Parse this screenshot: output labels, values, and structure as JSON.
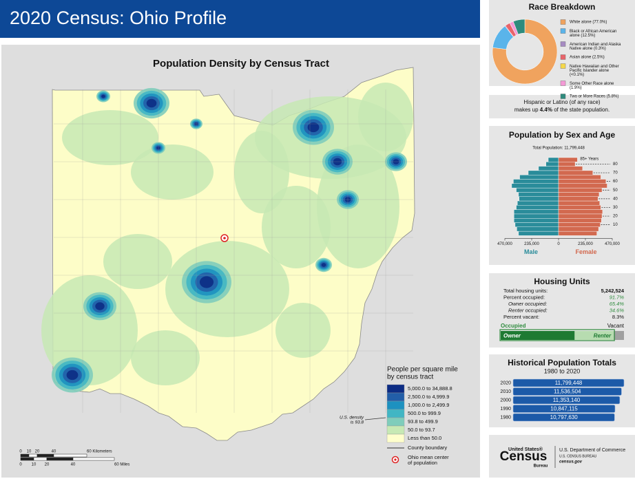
{
  "header": {
    "title": "2020 Census: Ohio Profile"
  },
  "map": {
    "title": "Population Density by Census Tract",
    "legend_title": [
      "People per square mile",
      "by census tract"
    ],
    "legend": [
      {
        "label": "5,000.0 to 34,888.8",
        "color": "#0c2c84"
      },
      {
        "label": "2,500.0 to 4,999.9",
        "color": "#225ea8"
      },
      {
        "label": "1,000.0 to 2,499.9",
        "color": "#1d91c0"
      },
      {
        "label": "500.0 to 999.9",
        "color": "#41b6c4"
      },
      {
        "label": "93.8 to 499.9",
        "color": "#7fcdbb"
      },
      {
        "label": "50.0 to 93.7",
        "color": "#c7e9b4"
      },
      {
        "label": "Less than 50.0",
        "color": "#ffffcc"
      }
    ],
    "county_boundary": "County boundary",
    "mean_center": [
      "Ohio mean center",
      "of population"
    ],
    "us_density": [
      "U.S. density",
      "is 93.8"
    ],
    "scale_km": [
      "0",
      "10",
      "20",
      "40",
      "60 Kilometers"
    ],
    "scale_mi": [
      "0",
      "10",
      "20",
      "40",
      "60 Miles"
    ]
  },
  "chart_data": [
    {
      "type": "pie",
      "title": "Race Breakdown",
      "categories": [
        "White alone (77.0%)",
        "Black or African American alone (12.5%)",
        "American Indian and Alaska Native alone (0.3%)",
        "Asian alone (2.5%)",
        "Native Hawaiian and Other Pacific Islander alone (<0.1%)",
        "Some Other Race alone (1.9%)",
        "Two or More Races (5.8%)"
      ],
      "values": [
        77.0,
        12.5,
        0.3,
        2.5,
        0.04,
        1.9,
        5.8
      ],
      "colors": [
        "#f0a35e",
        "#5ab4ea",
        "#a68bc2",
        "#e8646a",
        "#f5d84a",
        "#f49ad6",
        "#2e8b7d"
      ]
    },
    {
      "type": "pyramid",
      "title": "Population by Sex and Age",
      "subtitle": "Total Population: 11,799,448",
      "categories": [
        null,
        null,
        "10",
        null,
        "20",
        null,
        "30",
        null,
        "40",
        null,
        "50",
        null,
        "60",
        null,
        "70",
        null,
        "80",
        "85+ Years"
      ],
      "series": [
        {
          "name": "Male",
          "color": "#2a8c9a",
          "values": [
            350000,
            365000,
            380000,
            390000,
            390000,
            390000,
            370000,
            360000,
            345000,
            350000,
            370000,
            410000,
            395000,
            340000,
            265000,
            175000,
            110000,
            90000
          ]
        },
        {
          "name": "Female",
          "color": "#d2694f",
          "values": [
            335000,
            350000,
            365000,
            375000,
            380000,
            385000,
            370000,
            360000,
            345000,
            355000,
            380000,
            425000,
            415000,
            370000,
            300000,
            210000,
            145000,
            165000
          ]
        }
      ],
      "xlim": [
        0,
        470000
      ],
      "xticks": [
        0,
        {
          "value": 235000,
          "label": "235,000"
        },
        {
          "value": 470000,
          "label": "470,000"
        }
      ]
    },
    {
      "type": "hbar",
      "title": "Historical Population Totals",
      "subtitle": "1980 to 2020",
      "categories": [
        "2020",
        "2010",
        "2000",
        "1990",
        "1980"
      ],
      "values": [
        11799448,
        11536504,
        11353140,
        10847115,
        10797630
      ],
      "value_labels": [
        "11,799,448",
        "11,536,504",
        "11,353,140",
        "10,847,115",
        "10,797,630"
      ],
      "color": "#1c5aa8"
    }
  ],
  "hispanic": {
    "line1": "Hispanic or Latino (of any race)",
    "pre": "makes up",
    "value": "4.4%",
    "post": "of the state population."
  },
  "housing": {
    "title": "Housing Units",
    "labels": [
      "Total housing units:",
      "Percent occupied:",
      "Owner occupied:",
      "Renter occupied:",
      "Percent vacant:"
    ],
    "values": [
      5242524,
      91.7,
      65.4,
      34.6,
      8.3
    ],
    "value_labels": [
      "5,242,524",
      "91.7%",
      "65.4%",
      "34.6%",
      "8.3%"
    ],
    "occupied": "Occupied",
    "vacant": "Vacant",
    "owner": "Owner",
    "renter": "Renter"
  },
  "footer": {
    "logo_top": "United States®",
    "logo": "Census",
    "logo_bottom": "Bureau",
    "dept": "U.S. Department of Commerce",
    "bureau": "U.S. CENSUS BUREAU",
    "site": "census.gov"
  }
}
